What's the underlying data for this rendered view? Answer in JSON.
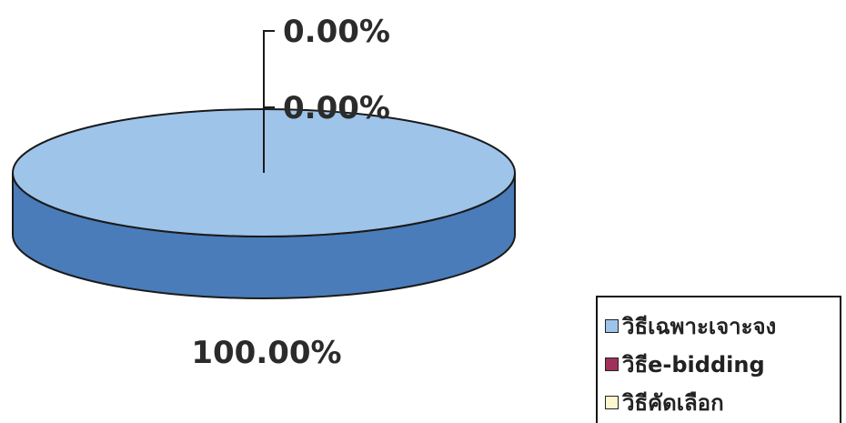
{
  "chart_data": {
    "type": "pie",
    "style": "3d",
    "categories": [
      "วิธีเฉพาะเจาะจง",
      "วิธีe-bidding",
      "วิธีคัดเลือก"
    ],
    "values": [
      100.0,
      0.0,
      0.0
    ],
    "labels": [
      "100.00%",
      "0.00%",
      "0.00%"
    ],
    "colors": [
      "#9ec4ea",
      "#a0305c",
      "#fdf6cf"
    ],
    "side_color": "#4a7cb9",
    "outline_color": "#1a1a1a",
    "legend_position": "bottom-right"
  }
}
